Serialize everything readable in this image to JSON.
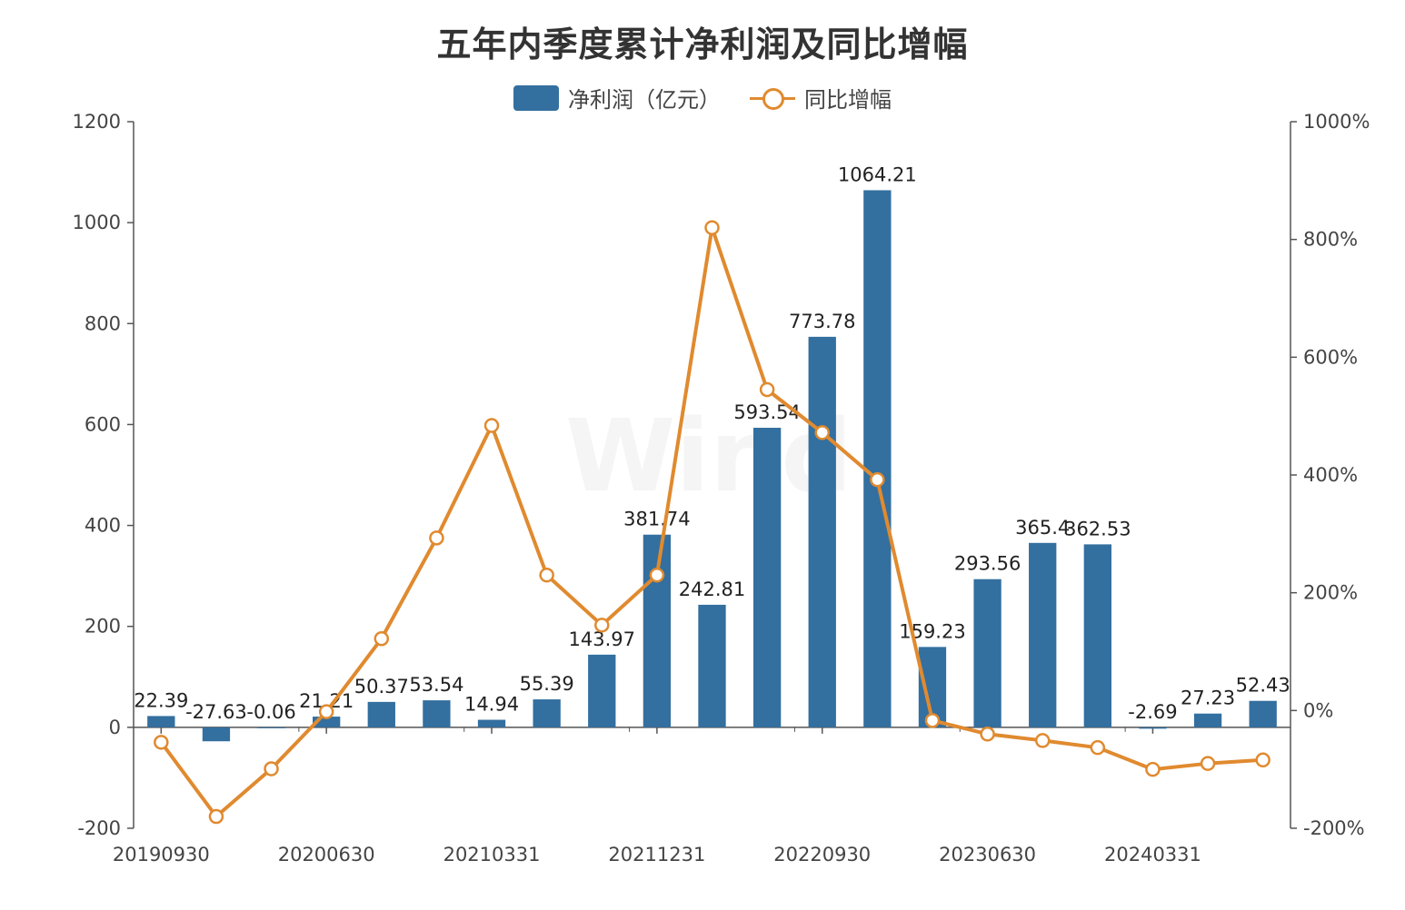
{
  "chart_data": {
    "type": "bar+line",
    "title": "五年内季度累计净利润及同比增幅",
    "legend": [
      {
        "name": "净利润（亿元）",
        "kind": "bar",
        "color": "#336f9f"
      },
      {
        "name": "同比增幅",
        "kind": "line",
        "color": "#e08a2f"
      }
    ],
    "legend_position": "top-center",
    "watermark": "Wind",
    "x_tick_labels": [
      "20190930",
      "20200630",
      "20210331",
      "20211231",
      "20220930",
      "20230630",
      "20240331"
    ],
    "x_tick_every": 3,
    "series": [
      {
        "name": "净利润（亿元）",
        "axis": "left",
        "values": [
          22.39,
          -27.63,
          -0.06,
          21.21,
          50.37,
          53.54,
          14.94,
          55.39,
          143.97,
          381.74,
          242.81,
          593.54,
          773.78,
          1064.21,
          159.23,
          293.56,
          365.4,
          362.53,
          -2.69,
          27.23,
          52.43
        ],
        "labels": [
          "22.39",
          "-27.63",
          "-0.06",
          "21.21",
          "50.37",
          "53.54",
          "14.94",
          "55.39",
          "143.97",
          "381.74",
          "242.81",
          "593.54",
          "773.78",
          "1064.21",
          "159.23",
          "293.56",
          "365.4",
          "362.53",
          "-2.69",
          "27.23",
          "52.43"
        ]
      },
      {
        "name": "同比增幅",
        "axis": "right",
        "unit": "%",
        "values": [
          -54,
          -180,
          -99,
          -2,
          122,
          293,
          484,
          230,
          145,
          230,
          820,
          545,
          472,
          392,
          -17,
          -40,
          -51,
          -63,
          -100,
          -90,
          -84
        ]
      }
    ],
    "y_left": {
      "ylim": [
        -200,
        1200
      ],
      "ticks": [
        "-200",
        "0",
        "200",
        "400",
        "600",
        "800",
        "1000",
        "1200"
      ]
    },
    "y_right": {
      "ylim": [
        -200,
        1000
      ],
      "ticks": [
        "-200%",
        "0%",
        "200%",
        "400%",
        "600%",
        "800%",
        "1000%"
      ]
    },
    "grid": false
  }
}
